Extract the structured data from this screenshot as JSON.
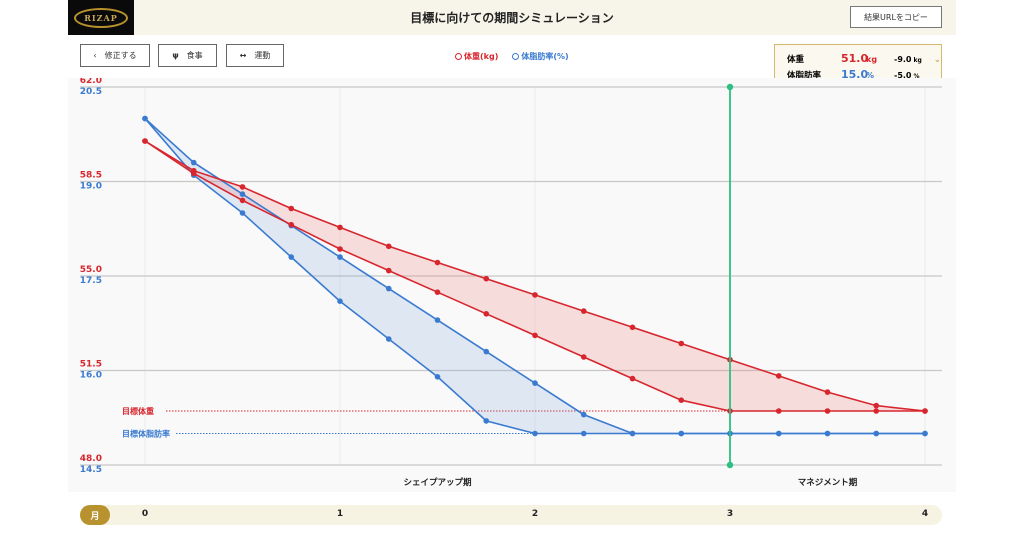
{
  "header": {
    "logo_text": "RIZAP",
    "title": "目標に向けての期間シミュレーション",
    "copy_button": "結果URLをコピー"
  },
  "toolbar": {
    "back_icon": "‹",
    "back_label": "修正する",
    "meal_icon": "fork-knife",
    "meal_label": "食事",
    "exercise_icon": "dumbbell",
    "exercise_label": "運動"
  },
  "legend": {
    "weight": "体重(kg)",
    "fat": "体脂肪率(%)"
  },
  "summary": {
    "weight_label": "体重",
    "weight_value": "51.0",
    "weight_unit": "kg",
    "weight_diff": "-9.0",
    "weight_diff_unit": "kg",
    "fat_label": "体脂肪率",
    "fat_value": "15.0",
    "fat_unit": "%",
    "fat_diff": "-5.0",
    "fat_diff_unit": "%"
  },
  "colors": {
    "weight": "#d7262e",
    "fat": "#3a7bd0",
    "marker": "#2cbf83",
    "accent": "#b8922f"
  },
  "months_label": "月",
  "chart_data": {
    "type": "area",
    "x": [
      0,
      0.25,
      0.5,
      0.75,
      1,
      1.25,
      1.5,
      1.75,
      2,
      2.25,
      2.5,
      2.75,
      3,
      3.25,
      3.5,
      3.75,
      4
    ],
    "x_ticks": [
      "0",
      "1",
      "2",
      "3",
      "4"
    ],
    "xlim": [
      0,
      4
    ],
    "y_left": {
      "ticks": [
        "62.0",
        "58.5",
        "55.0",
        "51.5",
        "48.0"
      ],
      "ylim": [
        48.0,
        62.0
      ]
    },
    "y_right": {
      "ticks": [
        "20.5",
        "19.0",
        "17.5",
        "16.0",
        "14.5"
      ],
      "ylim": [
        14.5,
        20.5
      ]
    },
    "series": [
      {
        "axis": "weight",
        "band": "upper",
        "values": [
          60.0,
          58.9,
          58.3,
          57.5,
          56.8,
          56.1,
          55.5,
          54.9,
          54.3,
          53.7,
          53.1,
          52.5,
          51.9,
          51.3,
          50.7,
          50.2,
          50.0
        ]
      },
      {
        "axis": "weight",
        "band": "lower",
        "values": [
          60.0,
          58.8,
          57.8,
          56.9,
          56.0,
          55.2,
          54.4,
          53.6,
          52.8,
          52.0,
          51.2,
          50.4,
          50.0,
          50.0,
          50.0,
          50.0,
          50.0
        ]
      },
      {
        "axis": "fat",
        "band": "upper",
        "values": [
          20.0,
          19.3,
          18.8,
          18.3,
          17.8,
          17.3,
          16.8,
          16.3,
          15.8,
          15.3,
          15.0,
          15.0,
          15.0,
          15.0,
          15.0,
          15.0,
          15.0
        ]
      },
      {
        "axis": "fat",
        "band": "lower",
        "values": [
          20.0,
          19.1,
          18.5,
          17.8,
          17.1,
          16.5,
          15.9,
          15.2,
          15.0,
          15.0,
          15.0,
          15.0,
          15.0,
          15.0,
          15.0,
          15.0,
          15.0
        ]
      }
    ],
    "target_weight": {
      "label": "目標体重",
      "value": 50.0
    },
    "target_fat": {
      "label": "目標体脂肪率",
      "value": 15.0
    },
    "marker_x": 3,
    "phases": [
      {
        "label": "シェイプアップ期"
      },
      {
        "label": "マネジメント期"
      }
    ],
    "grid": true
  }
}
